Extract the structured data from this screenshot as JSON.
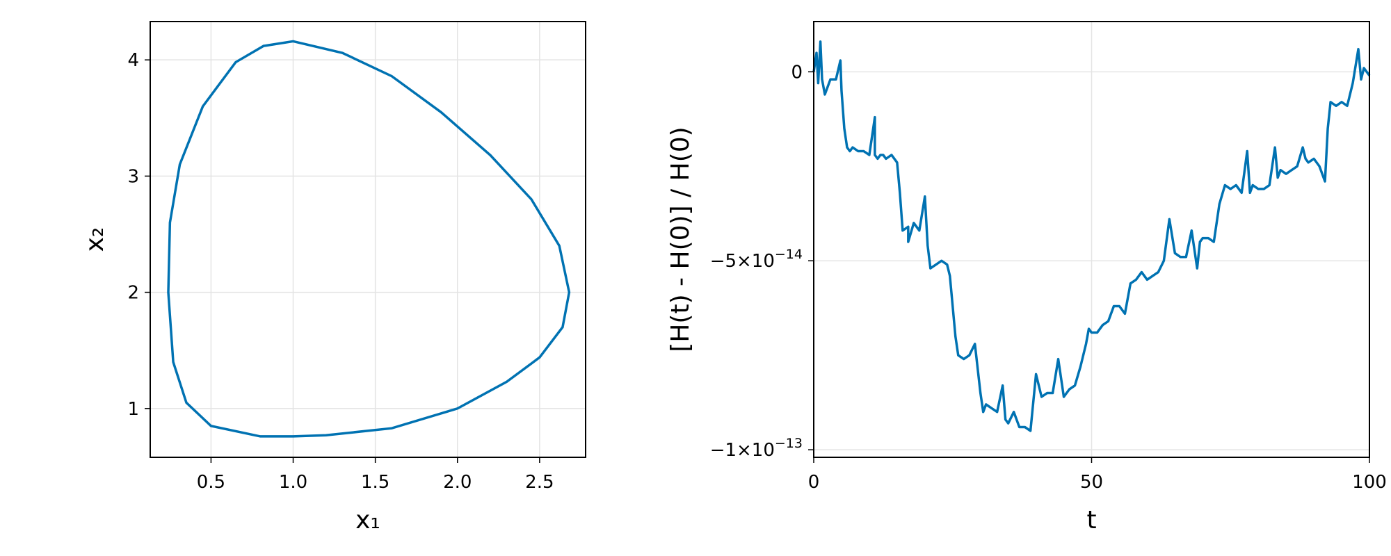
{
  "colors": {
    "series": "#0072b2",
    "grid": "#e4e4e4",
    "frame": "#000000"
  },
  "chart_data": [
    {
      "type": "line",
      "title": "",
      "xlabel": "x₁",
      "ylabel": "x₂",
      "xlim": [
        0.13,
        2.78
      ],
      "ylim": [
        0.58,
        4.33
      ],
      "xticks": [
        0.5,
        1.0,
        1.5,
        2.0,
        2.5
      ],
      "xtick_labels": [
        "0.5",
        "1.0",
        "1.5",
        "2.0",
        "2.5"
      ],
      "yticks": [
        1,
        2,
        3,
        4
      ],
      "ytick_labels": [
        "1",
        "2",
        "3",
        "4"
      ],
      "grid": true,
      "series": [
        {
          "closed": true,
          "x": [
            1.0,
            1.3,
            1.6,
            1.9,
            2.2,
            2.45,
            2.62,
            2.68,
            2.64,
            2.5,
            2.3,
            2.0,
            1.6,
            1.2,
            1.0,
            0.8,
            0.5,
            0.35,
            0.27,
            0.24,
            0.25,
            0.31,
            0.45,
            0.65,
            0.82,
            1.0
          ],
          "y": [
            4.16,
            4.06,
            3.86,
            3.55,
            3.18,
            2.8,
            2.4,
            2.0,
            1.7,
            1.44,
            1.23,
            1.0,
            0.83,
            0.77,
            0.76,
            0.76,
            0.85,
            1.05,
            1.4,
            2.0,
            2.6,
            3.1,
            3.6,
            3.98,
            4.12,
            4.16
          ]
        }
      ]
    },
    {
      "type": "line",
      "title": "",
      "xlabel": "t",
      "ylabel": "[H(t) - H(0)] / H(0)",
      "xlim": [
        0,
        100
      ],
      "ylim": [
        -1.02e-13,
        1.33e-14
      ],
      "xticks": [
        0,
        50,
        100
      ],
      "xtick_labels": [
        "0",
        "50",
        "100"
      ],
      "yticks": [
        0,
        -5e-14,
        -1e-13
      ],
      "ytick_labels": [
        {
          "base": "0",
          "exp": ""
        },
        {
          "base": "−5×10",
          "exp": "−14"
        },
        {
          "base": "−1×10",
          "exp": "−13"
        }
      ],
      "grid": true,
      "series": [
        {
          "closed": false,
          "x": [
            0,
            0.5,
            0.8,
            1.2,
            1.5,
            2,
            3,
            4,
            4.8,
            5,
            5.5,
            6,
            6.5,
            7,
            8,
            9,
            10,
            11,
            11,
            11.5,
            12,
            12.5,
            13,
            14,
            15,
            15.5,
            16,
            17,
            17,
            18,
            19,
            20,
            20.5,
            21,
            22,
            23,
            24,
            24.5,
            25,
            25.5,
            26,
            27,
            28,
            29,
            30,
            30.5,
            31,
            32,
            33,
            34,
            34.5,
            35,
            36,
            37,
            38,
            39,
            40,
            41,
            42,
            43,
            44,
            45,
            46,
            47,
            48,
            49,
            49.5,
            50,
            51,
            52,
            53,
            54,
            55,
            56,
            57,
            58,
            59,
            60,
            61,
            62,
            63,
            64,
            65,
            66,
            67,
            68,
            69,
            69.5,
            70,
            71,
            72,
            73,
            74,
            75,
            76,
            77,
            78,
            78.5,
            79,
            80,
            81,
            82,
            83,
            83.5,
            84,
            85,
            86,
            87,
            88,
            88.5,
            89,
            90,
            91,
            92,
            92.5,
            93,
            94,
            95,
            96,
            97,
            98,
            98.5,
            99,
            100
          ],
          "y": [
            0,
            5e-15,
            -3e-15,
            8e-15,
            -2e-15,
            -6e-15,
            -2e-15,
            -2e-15,
            3e-15,
            -5e-15,
            -1.5e-14,
            -2e-14,
            -2.1e-14,
            -2e-14,
            -2.1e-14,
            -2.1e-14,
            -2.2e-14,
            -1.2e-14,
            -2.2e-14,
            -2.3e-14,
            -2.2e-14,
            -2.2e-14,
            -2.3e-14,
            -2.2e-14,
            -2.4e-14,
            -3.2e-14,
            -4.2e-14,
            -4.1e-14,
            -4.5e-14,
            -4e-14,
            -4.2e-14,
            -3.3e-14,
            -4.6e-14,
            -5.2e-14,
            -5.1e-14,
            -5e-14,
            -5.1e-14,
            -5.4e-14,
            -6.2e-14,
            -7e-14,
            -7.5e-14,
            -7.6e-14,
            -7.5e-14,
            -7.2e-14,
            -8.5e-14,
            -9e-14,
            -8.8e-14,
            -8.9e-14,
            -9e-14,
            -8.3e-14,
            -9.2e-14,
            -9.3e-14,
            -9e-14,
            -9.4e-14,
            -9.4e-14,
            -9.5e-14,
            -8e-14,
            -8.6e-14,
            -8.5e-14,
            -8.5e-14,
            -7.6e-14,
            -8.6e-14,
            -8.4e-14,
            -8.3e-14,
            -7.8e-14,
            -7.2e-14,
            -6.8e-14,
            -6.9e-14,
            -6.9e-14,
            -6.7e-14,
            -6.6e-14,
            -6.2e-14,
            -6.2e-14,
            -6.4e-14,
            -5.6e-14,
            -5.5e-14,
            -5.3e-14,
            -5.5e-14,
            -5.4e-14,
            -5.3e-14,
            -5e-14,
            -3.9e-14,
            -4.8e-14,
            -4.9e-14,
            -4.9e-14,
            -4.2e-14,
            -5.2e-14,
            -4.5e-14,
            -4.4e-14,
            -4.4e-14,
            -4.5e-14,
            -3.5e-14,
            -3e-14,
            -3.1e-14,
            -3e-14,
            -3.2e-14,
            -2.1e-14,
            -3.2e-14,
            -3e-14,
            -3.1e-14,
            -3.1e-14,
            -3e-14,
            -2e-14,
            -2.8e-14,
            -2.6e-14,
            -2.7e-14,
            -2.6e-14,
            -2.5e-14,
            -2e-14,
            -2.3e-14,
            -2.4e-14,
            -2.3e-14,
            -2.5e-14,
            -2.9e-14,
            -1.5e-14,
            -8e-15,
            -9e-15,
            -8e-15,
            -9e-15,
            -3e-15,
            6e-15,
            -2e-15,
            1e-15,
            -1e-15
          ]
        }
      ]
    }
  ]
}
